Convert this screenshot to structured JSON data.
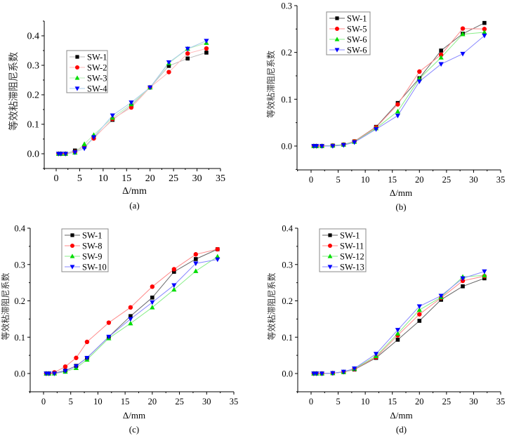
{
  "chart_data": [
    {
      "type": "line",
      "panel": "a",
      "caption": "(a)",
      "title": "",
      "xlabel": "Δ/mm",
      "ylabel": "等效粘滞阻尼系数",
      "xlim": [
        -2.5,
        35
      ],
      "ylim": [
        -0.05,
        0.45
      ],
      "xticks": [
        "0",
        "5",
        "10",
        "15",
        "20",
        "25",
        "30",
        "35"
      ],
      "yticks": [
        "0.0",
        "0.1",
        "0.2",
        "0.3",
        "0.4"
      ],
      "grid": false,
      "legend_position": "upper-left",
      "x": [
        0.5,
        1,
        2,
        4,
        6,
        8,
        12,
        16,
        20,
        24,
        28,
        32
      ],
      "series": [
        {
          "name": "SW-1",
          "marker": "square",
          "color": "#000000",
          "line_color": "#bbbbbb",
          "values": [
            0,
            0,
            0,
            0.011,
            0.024,
            0.055,
            0.115,
            0.163,
            0.225,
            0.298,
            0.323,
            0.343
          ]
        },
        {
          "name": "SW-2",
          "marker": "circle",
          "color": "#ff0000",
          "line_color": "#ffbbbb",
          "values": [
            0,
            0,
            0,
            0.006,
            0.025,
            0.052,
            0.118,
            0.157,
            0.225,
            0.277,
            0.34,
            0.357
          ]
        },
        {
          "name": "SW-3",
          "marker": "triangle-up",
          "color": "#00dd00",
          "line_color": "#bbeebb",
          "values": [
            0,
            0,
            0,
            0.004,
            0.033,
            0.064,
            0.122,
            0.168,
            0.225,
            0.307,
            0.356,
            0.376
          ]
        },
        {
          "name": "SW-4",
          "marker": "triangle-down",
          "color": "#0000ff",
          "line_color": "#aaccee",
          "values": [
            0,
            0,
            0,
            0.005,
            0.018,
            0.056,
            0.13,
            0.174,
            0.225,
            0.31,
            0.356,
            0.383
          ]
        }
      ]
    },
    {
      "type": "line",
      "panel": "b",
      "caption": "(b)",
      "title": "",
      "xlabel": "Δ/mm",
      "ylabel": "等效粘滞阻尼系数",
      "xlim": [
        -2.5,
        35
      ],
      "ylim": [
        -0.05,
        0.3
      ],
      "xticks": [
        "0",
        "5",
        "10",
        "15",
        "20",
        "25",
        "30",
        "35"
      ],
      "yticks": [
        "0.0",
        "0.1",
        "0.2",
        "0.3"
      ],
      "grid": false,
      "legend_position": "upper-left",
      "x": [
        0.5,
        1,
        2,
        4,
        6,
        8,
        12,
        16,
        20,
        24,
        28,
        32
      ],
      "series": [
        {
          "name": "SW-1",
          "marker": "square",
          "color": "#000000",
          "line_color": "#666666",
          "values": [
            0,
            0,
            0,
            0.001,
            0.003,
            0.01,
            0.041,
            0.092,
            0.145,
            0.204,
            0.24,
            0.263
          ]
        },
        {
          "name": "SW-5",
          "marker": "circle",
          "color": "#ff0000",
          "line_color": "#ff8888",
          "values": [
            0,
            0,
            0,
            0.001,
            0.003,
            0.01,
            0.04,
            0.089,
            0.159,
            0.195,
            0.251,
            0.25
          ]
        },
        {
          "name": "SW-6",
          "marker": "triangle-up",
          "color": "#00dd00",
          "line_color": "#88ee88",
          "values": [
            0,
            0,
            0,
            0.001,
            0.003,
            0.009,
            0.038,
            0.074,
            0.144,
            0.189,
            0.239,
            0.243
          ]
        },
        {
          "name": "SW-6",
          "marker": "triangle-down",
          "color": "#0000ff",
          "line_color": "#8888ff",
          "values": [
            0,
            0,
            0,
            0,
            0.002,
            0.008,
            0.036,
            0.065,
            0.138,
            0.175,
            0.197,
            0.236
          ]
        }
      ]
    },
    {
      "type": "line",
      "panel": "c",
      "caption": "(c)",
      "title": "",
      "xlabel": "Δ/mm",
      "ylabel": "等效粘滞阻尼系数",
      "xlim": [
        -2.5,
        35
      ],
      "ylim": [
        -0.05,
        0.4
      ],
      "xticks": [
        "0",
        "5",
        "10",
        "15",
        "20",
        "25",
        "30",
        "35"
      ],
      "yticks": [
        "0.0",
        "0.1",
        "0.2",
        "0.3",
        "0.4"
      ],
      "grid": false,
      "legend_position": "upper-left",
      "x": [
        0.5,
        1,
        2,
        4,
        6,
        8,
        12,
        16,
        20,
        24,
        28,
        32
      ],
      "series": [
        {
          "name": "SW-1",
          "marker": "square",
          "color": "#000000",
          "line_color": "#666666",
          "values": [
            0,
            0,
            0.001,
            0.008,
            0.021,
            0.043,
            0.101,
            0.158,
            0.209,
            0.28,
            0.315,
            0.342
          ]
        },
        {
          "name": "SW-8",
          "marker": "circle",
          "color": "#ff0000",
          "line_color": "#ff8888",
          "values": [
            0,
            0,
            0.003,
            0.019,
            0.043,
            0.087,
            0.14,
            0.182,
            0.239,
            0.287,
            0.328,
            0.342
          ]
        },
        {
          "name": "SW-9",
          "marker": "triangle-up",
          "color": "#00dd00",
          "line_color": "#88ee88",
          "values": [
            0,
            0,
            0,
            0.005,
            0.015,
            0.038,
            0.097,
            0.138,
            0.182,
            0.231,
            0.282,
            0.322
          ]
        },
        {
          "name": "SW-10",
          "marker": "triangle-down",
          "color": "#0000ff",
          "line_color": "#8888ff",
          "values": [
            0,
            0,
            0,
            0.007,
            0.02,
            0.043,
            0.101,
            0.15,
            0.196,
            0.243,
            0.303,
            0.314
          ]
        }
      ]
    },
    {
      "type": "line",
      "panel": "d",
      "caption": "(d)",
      "title": "",
      "xlabel": "Δ/mm",
      "ylabel": "等效粘滞阻尼系数",
      "xlim": [
        -2.5,
        35
      ],
      "ylim": [
        -0.05,
        0.4
      ],
      "xticks": [
        "0",
        "5",
        "10",
        "15",
        "20",
        "25",
        "30",
        "35"
      ],
      "yticks": [
        "0.0",
        "0.1",
        "0.2",
        "0.3",
        "0.4"
      ],
      "grid": false,
      "legend_position": "upper-left",
      "x": [
        0.5,
        1,
        2,
        4,
        6,
        8,
        12,
        16,
        20,
        24,
        28,
        32
      ],
      "series": [
        {
          "name": "SW-1",
          "marker": "square",
          "color": "#000000",
          "line_color": "#666666",
          "values": [
            0,
            0,
            0,
            0.001,
            0.004,
            0.011,
            0.043,
            0.093,
            0.145,
            0.203,
            0.24,
            0.262
          ]
        },
        {
          "name": "SW-11",
          "marker": "circle",
          "color": "#ff0000",
          "line_color": "#ff8888",
          "values": [
            0,
            0,
            0,
            0.001,
            0.004,
            0.012,
            0.045,
            0.105,
            0.163,
            0.208,
            0.255,
            0.268
          ]
        },
        {
          "name": "SW-12",
          "marker": "triangle-up",
          "color": "#00dd00",
          "line_color": "#88ee88",
          "values": [
            0,
            0,
            0,
            0.001,
            0.004,
            0.013,
            0.048,
            0.11,
            0.175,
            0.21,
            0.266,
            0.27
          ]
        },
        {
          "name": "SW-13",
          "marker": "triangle-down",
          "color": "#0000ff",
          "line_color": "#8888ff",
          "values": [
            0,
            0,
            0,
            0.001,
            0.005,
            0.014,
            0.054,
            0.12,
            0.185,
            0.214,
            0.262,
            0.281
          ]
        }
      ]
    }
  ]
}
